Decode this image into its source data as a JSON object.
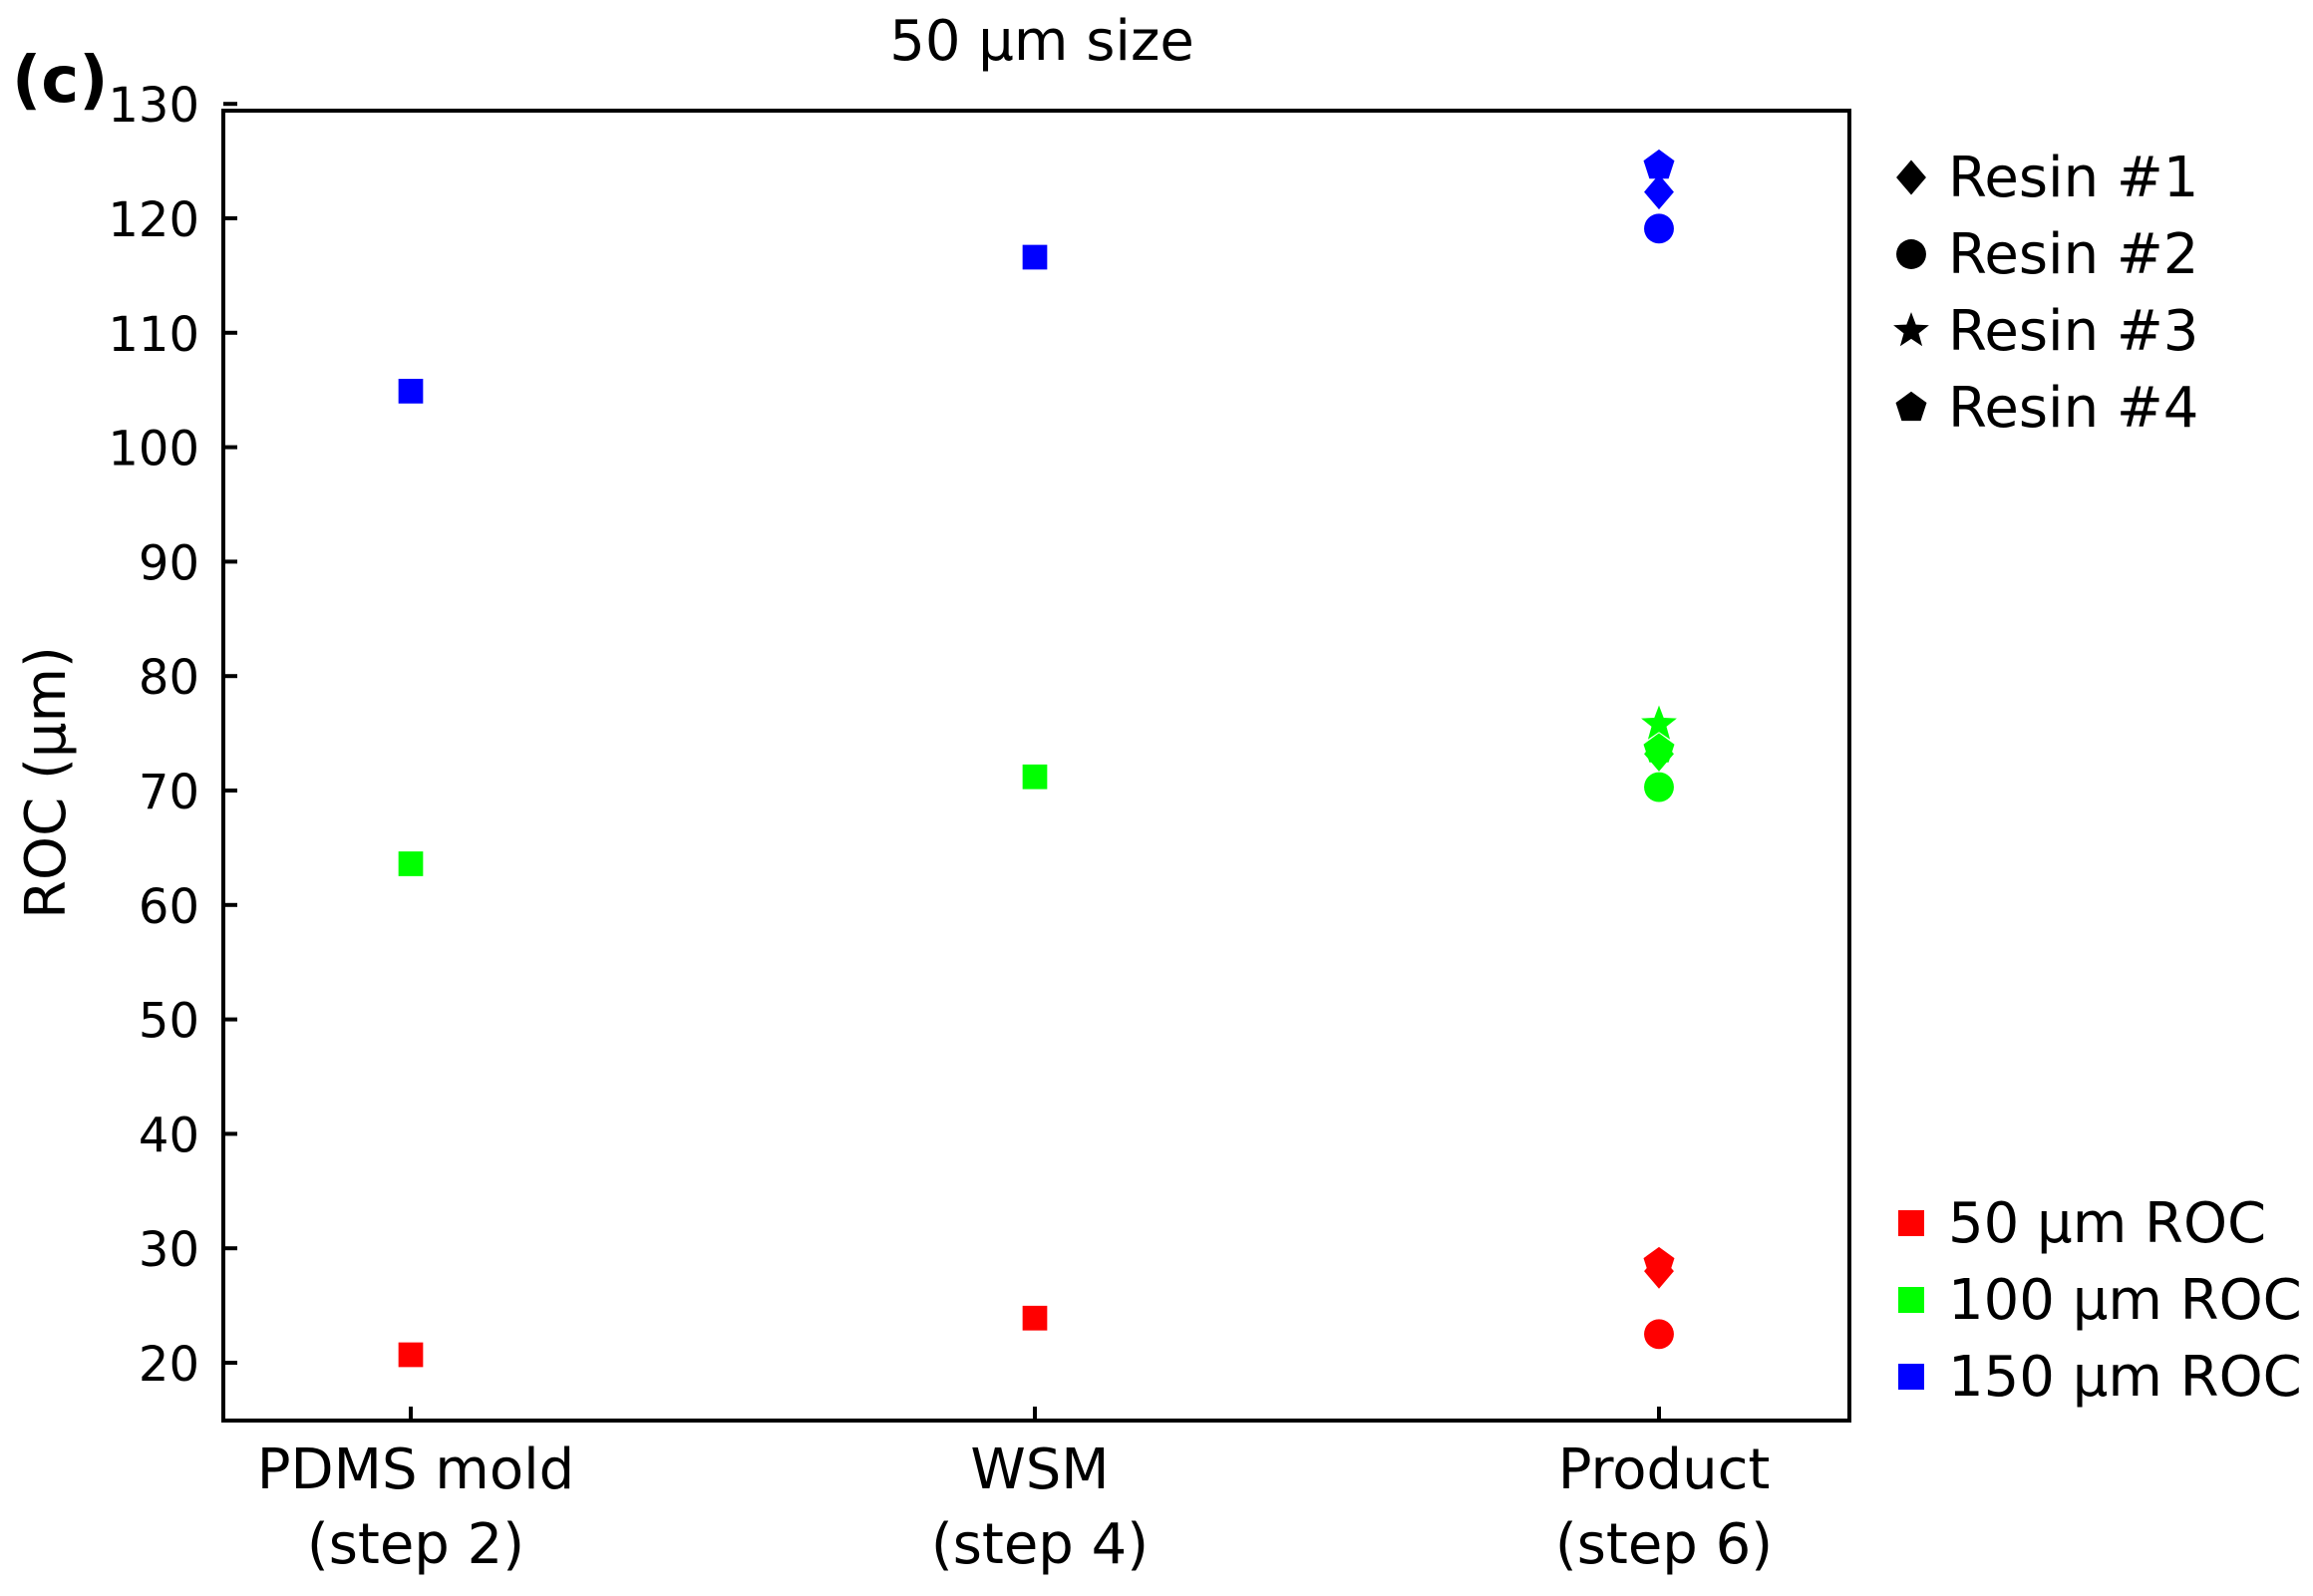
{
  "chart_data": {
    "type": "scatter",
    "panel_label": "(c)",
    "title": "50 μm size",
    "xlabel": "",
    "ylabel": "ROC (μm)",
    "ylim": [
      15,
      130
    ],
    "yticks": [
      20,
      30,
      40,
      50,
      60,
      70,
      80,
      90,
      100,
      110,
      120,
      130
    ],
    "categories": [
      {
        "line1": "PDMS mold",
        "line2": "(step 2)"
      },
      {
        "line1": "WSM",
        "line2": "(step 4)"
      },
      {
        "line1": "Product",
        "line2": "(step 6)"
      }
    ],
    "series": [
      {
        "name": "50 μm ROC",
        "color": "#ff0000",
        "points": [
          {
            "x": 0,
            "y": 20.7,
            "marker": "square"
          },
          {
            "x": 1,
            "y": 23.9,
            "marker": "square"
          },
          {
            "x": 2,
            "y": 28.7,
            "marker": "pentagon"
          },
          {
            "x": 2,
            "y": 28.0,
            "marker": "diamond"
          },
          {
            "x": 2,
            "y": 22.5,
            "marker": "circle"
          }
        ]
      },
      {
        "name": "100 μm ROC",
        "color": "#00ff00",
        "points": [
          {
            "x": 0,
            "y": 63.6,
            "marker": "square"
          },
          {
            "x": 1,
            "y": 71.2,
            "marker": "square"
          },
          {
            "x": 2,
            "y": 75.8,
            "marker": "star"
          },
          {
            "x": 2,
            "y": 73.6,
            "marker": "pentagon"
          },
          {
            "x": 2,
            "y": 73.2,
            "marker": "diamond"
          },
          {
            "x": 2,
            "y": 70.3,
            "marker": "circle"
          }
        ]
      },
      {
        "name": "150 μm ROC",
        "color": "#0000ff",
        "points": [
          {
            "x": 0,
            "y": 104.9,
            "marker": "square"
          },
          {
            "x": 1,
            "y": 116.6,
            "marker": "square"
          },
          {
            "x": 2,
            "y": 124.6,
            "marker": "pentagon"
          },
          {
            "x": 2,
            "y": 122.3,
            "marker": "diamond"
          },
          {
            "x": 2,
            "y": 119.1,
            "marker": "circle"
          }
        ]
      }
    ],
    "legend_markers": [
      {
        "label": "Resin #1",
        "marker": "diamond"
      },
      {
        "label": "Resin #2",
        "marker": "circle"
      },
      {
        "label": "Resin #3",
        "marker": "star"
      },
      {
        "label": "Resin #4",
        "marker": "pentagon"
      }
    ],
    "legend_colors": [
      {
        "label": "50 μm ROC",
        "color": "#ff0000"
      },
      {
        "label": "100 μm ROC",
        "color": "#00ff00"
      },
      {
        "label": "150 μm ROC",
        "color": "#0000ff"
      }
    ]
  }
}
